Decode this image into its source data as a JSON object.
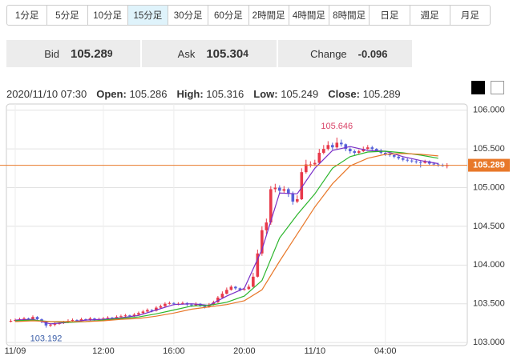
{
  "tabs": [
    "1分足",
    "5分足",
    "10分足",
    "15分足",
    "30分足",
    "60分足",
    "2時間足",
    "4時間足",
    "8時間足",
    "日足",
    "週足",
    "月足"
  ],
  "active_tab": 3,
  "quote": {
    "bid_label": "Bid",
    "bid_main": "105.28",
    "bid_pip": "9",
    "ask_label": "Ask",
    "ask_main": "105.30",
    "ask_pip": "4",
    "change_label": "Change",
    "change": "-0.096"
  },
  "info": {
    "time": "2020/11/10 07:30",
    "items": [
      {
        "label": "Open:",
        "value": "105.286"
      },
      {
        "label": "High:",
        "value": "105.316"
      },
      {
        "label": "Low:",
        "value": "105.249"
      },
      {
        "label": "Close:",
        "value": "105.289"
      }
    ]
  },
  "chart_data": {
    "type": "candlestick",
    "up_color": "#e8394a",
    "down_color": "#5560d8",
    "x": [
      6.75,
      7,
      7.25,
      7.5,
      7.75,
      8,
      8.25,
      8.5,
      8.75,
      9,
      9.25,
      9.5,
      9.75,
      10,
      10.25,
      10.5,
      10.75,
      11,
      11.25,
      11.5,
      11.75,
      12,
      12.25,
      12.5,
      12.75,
      13,
      13.25,
      13.5,
      13.75,
      14,
      14.25,
      14.5,
      14.75,
      15,
      15.25,
      15.5,
      15.75,
      16,
      16.25,
      16.5,
      16.75,
      17,
      17.25,
      17.5,
      17.75,
      18,
      18.25,
      18.5,
      18.75,
      19,
      19.25,
      19.5,
      19.75,
      20,
      20.25,
      20.5,
      20.75,
      21,
      21.25,
      21.5,
      21.75,
      22,
      22.25,
      22.5,
      22.75,
      23,
      23.25,
      23.5,
      23.75,
      24,
      24.25,
      24.5,
      24.75,
      25,
      25.25,
      25.5,
      25.75,
      26,
      26.25,
      26.5,
      26.75,
      27,
      27.25,
      27.5,
      27.75,
      28,
      28.25,
      28.5,
      28.75,
      29,
      29.25,
      29.5,
      29.75,
      30,
      30.25,
      30.5,
      30.75,
      31,
      31.25,
      31.5
    ],
    "candles": [
      [
        103.27,
        103.3,
        103.26,
        103.28
      ],
      [
        103.28,
        103.31,
        103.27,
        103.29
      ],
      [
        103.29,
        103.32,
        103.28,
        103.3
      ],
      [
        103.3,
        103.33,
        103.29,
        103.31
      ],
      [
        103.31,
        103.32,
        103.28,
        103.3
      ],
      [
        103.3,
        103.35,
        103.29,
        103.33
      ],
      [
        103.33,
        103.34,
        103.29,
        103.3
      ],
      [
        103.3,
        103.31,
        103.25,
        103.27
      ],
      [
        103.27,
        103.28,
        103.192,
        103.22
      ],
      [
        103.22,
        103.25,
        103.2,
        103.23
      ],
      [
        103.23,
        103.26,
        103.21,
        103.24
      ],
      [
        103.24,
        103.27,
        103.23,
        103.25
      ],
      [
        103.25,
        103.28,
        103.24,
        103.26
      ],
      [
        103.26,
        103.3,
        103.25,
        103.28
      ],
      [
        103.28,
        103.31,
        103.27,
        103.29
      ],
      [
        103.29,
        103.3,
        103.26,
        103.28
      ],
      [
        103.28,
        103.32,
        103.27,
        103.3
      ],
      [
        103.3,
        103.31,
        103.28,
        103.29
      ],
      [
        103.29,
        103.33,
        103.28,
        103.31
      ],
      [
        103.31,
        103.32,
        103.28,
        103.3
      ],
      [
        103.3,
        103.32,
        103.29,
        103.3
      ],
      [
        103.3,
        103.33,
        103.29,
        103.31
      ],
      [
        103.31,
        103.34,
        103.3,
        103.32
      ],
      [
        103.32,
        103.33,
        103.3,
        103.31
      ],
      [
        103.31,
        103.35,
        103.3,
        103.33
      ],
      [
        103.33,
        103.36,
        103.32,
        103.34
      ],
      [
        103.34,
        103.37,
        103.33,
        103.35
      ],
      [
        103.35,
        103.36,
        103.33,
        103.34
      ],
      [
        103.34,
        103.38,
        103.33,
        103.36
      ],
      [
        103.36,
        103.4,
        103.35,
        103.38
      ],
      [
        103.38,
        103.42,
        103.37,
        103.4
      ],
      [
        103.4,
        103.44,
        103.39,
        103.42
      ],
      [
        103.42,
        103.43,
        103.39,
        103.41
      ],
      [
        103.41,
        103.47,
        103.4,
        103.45
      ],
      [
        103.45,
        103.49,
        103.44,
        103.47
      ],
      [
        103.47,
        103.52,
        103.46,
        103.5
      ],
      [
        103.5,
        103.53,
        103.49,
        103.51
      ],
      [
        103.51,
        103.52,
        103.48,
        103.5
      ],
      [
        103.5,
        103.52,
        103.48,
        103.5
      ],
      [
        103.5,
        103.53,
        103.49,
        103.51
      ],
      [
        103.51,
        103.52,
        103.47,
        103.49
      ],
      [
        103.49,
        103.5,
        103.46,
        103.48
      ],
      [
        103.48,
        103.52,
        103.47,
        103.5
      ],
      [
        103.5,
        103.51,
        103.46,
        103.48
      ],
      [
        103.48,
        103.49,
        103.44,
        103.46
      ],
      [
        103.46,
        103.51,
        103.45,
        103.49
      ],
      [
        103.49,
        103.54,
        103.48,
        103.52
      ],
      [
        103.52,
        103.6,
        103.51,
        103.58
      ],
      [
        103.58,
        103.66,
        103.57,
        103.63
      ],
      [
        103.63,
        103.71,
        103.62,
        103.68
      ],
      [
        103.68,
        103.74,
        103.67,
        103.72
      ],
      [
        103.72,
        103.73,
        103.68,
        103.7
      ],
      [
        103.7,
        103.71,
        103.66,
        103.68
      ],
      [
        103.68,
        103.71,
        103.67,
        103.69
      ],
      [
        103.69,
        103.75,
        103.68,
        103.72
      ],
      [
        103.72,
        103.9,
        103.71,
        103.85
      ],
      [
        103.85,
        104.2,
        103.84,
        104.15
      ],
      [
        104.15,
        104.5,
        104.12,
        104.45
      ],
      [
        104.45,
        104.6,
        104.4,
        104.55
      ],
      [
        104.55,
        105.02,
        104.52,
        104.98
      ],
      [
        104.98,
        105.05,
        104.94,
        105
      ],
      [
        105,
        105.03,
        104.92,
        104.96
      ],
      [
        104.96,
        105.02,
        104.93,
        104.98
      ],
      [
        104.98,
        105,
        104.88,
        104.92
      ],
      [
        104.92,
        104.95,
        104.78,
        104.82
      ],
      [
        104.82,
        104.9,
        104.8,
        104.85
      ],
      [
        104.85,
        105.25,
        104.84,
        105.2
      ],
      [
        105.2,
        105.36,
        105.18,
        105.3
      ],
      [
        105.3,
        105.34,
        105.26,
        105.3
      ],
      [
        105.3,
        105.36,
        105.28,
        105.32
      ],
      [
        105.32,
        105.5,
        105.31,
        105.45
      ],
      [
        105.45,
        105.55,
        105.43,
        105.5
      ],
      [
        105.5,
        105.6,
        105.48,
        105.55
      ],
      [
        105.55,
        105.58,
        105.49,
        105.52
      ],
      [
        105.52,
        105.646,
        105.5,
        105.58
      ],
      [
        105.58,
        105.62,
        105.53,
        105.56
      ],
      [
        105.56,
        105.57,
        105.47,
        105.5
      ],
      [
        105.5,
        105.52,
        105.44,
        105.47
      ],
      [
        105.47,
        105.49,
        105.42,
        105.45
      ],
      [
        105.45,
        105.49,
        105.43,
        105.47
      ],
      [
        105.47,
        105.53,
        105.46,
        105.5
      ],
      [
        105.5,
        105.55,
        105.49,
        105.52
      ],
      [
        105.52,
        105.54,
        105.48,
        105.5
      ],
      [
        105.5,
        105.51,
        105.46,
        105.48
      ],
      [
        105.48,
        105.5,
        105.43,
        105.45
      ],
      [
        105.45,
        105.47,
        105.41,
        105.43
      ],
      [
        105.43,
        105.45,
        105.4,
        105.42
      ],
      [
        105.42,
        105.44,
        105.38,
        105.4
      ],
      [
        105.4,
        105.42,
        105.36,
        105.38
      ],
      [
        105.38,
        105.4,
        105.34,
        105.36
      ],
      [
        105.36,
        105.38,
        105.33,
        105.35
      ],
      [
        105.35,
        105.37,
        105.32,
        105.34
      ],
      [
        105.34,
        105.36,
        105.31,
        105.33
      ],
      [
        105.33,
        105.35,
        105.26,
        105.32
      ],
      [
        105.32,
        105.36,
        105.31,
        105.34
      ],
      [
        105.34,
        105.35,
        105.29,
        105.31
      ],
      [
        105.31,
        105.33,
        105.28,
        105.3
      ],
      [
        105.3,
        105.32,
        105.27,
        105.29
      ],
      [
        105.29,
        105.31,
        105.27,
        105.286
      ],
      [
        105.286,
        105.316,
        105.249,
        105.289
      ]
    ],
    "series": [
      {
        "color": "#7a2fc7",
        "x": [
          7,
          8,
          9,
          10,
          11,
          12,
          13,
          14,
          15,
          16,
          17,
          18,
          19,
          20,
          21,
          22,
          23,
          24,
          25,
          26,
          27,
          28,
          29,
          30,
          31
        ],
        "values": [
          103.29,
          103.3,
          103.24,
          103.26,
          103.29,
          103.3,
          103.32,
          103.35,
          103.42,
          103.49,
          103.5,
          103.48,
          103.6,
          103.7,
          104.2,
          104.93,
          104.92,
          105.25,
          105.48,
          105.53,
          105.48,
          105.47,
          105.4,
          105.35,
          105.31
        ]
      },
      {
        "color": "#2bb52b",
        "x": [
          7,
          8,
          9,
          10,
          11,
          12,
          13,
          14,
          15,
          16,
          17,
          18,
          19,
          20,
          21,
          22,
          23,
          24,
          25,
          26,
          27,
          28,
          29,
          30,
          31
        ],
        "values": [
          103.28,
          103.29,
          103.27,
          103.26,
          103.27,
          103.29,
          103.31,
          103.33,
          103.37,
          103.42,
          103.47,
          103.48,
          103.52,
          103.6,
          103.8,
          104.35,
          104.65,
          104.92,
          105.25,
          105.4,
          105.46,
          105.47,
          105.45,
          105.42,
          105.38
        ]
      },
      {
        "color": "#e8782a",
        "x": [
          7,
          8,
          9,
          10,
          11,
          12,
          13,
          14,
          15,
          16,
          17,
          18,
          19,
          20,
          21,
          22,
          23,
          24,
          25,
          26,
          27,
          28,
          29,
          30,
          31
        ],
        "values": [
          103.27,
          103.28,
          103.27,
          103.27,
          103.27,
          103.28,
          103.3,
          103.31,
          103.34,
          103.38,
          103.43,
          103.46,
          103.49,
          103.54,
          103.68,
          104.05,
          104.4,
          104.75,
          105.05,
          105.28,
          105.38,
          105.43,
          105.44,
          105.43,
          105.41
        ]
      }
    ],
    "last": {
      "value": 105.289,
      "label": "105.289",
      "color": "#e8782a"
    },
    "annotations": [
      {
        "x": 25.25,
        "value": 105.646,
        "label": "105.646",
        "color": "#d9466a"
      },
      {
        "x": 8.75,
        "value": 103.192,
        "label": "103.192",
        "color": "#3b5ea8"
      }
    ],
    "xlim": [
      6.5,
      32.65
    ],
    "ylim": [
      102.96,
      106.08
    ],
    "xticks": [
      {
        "value": 7,
        "label": "11/09"
      },
      {
        "value": 12,
        "label": "12:00"
      },
      {
        "value": 16,
        "label": "16:00"
      },
      {
        "value": 20,
        "label": "20:00"
      },
      {
        "value": 24,
        "label": "11/10"
      },
      {
        "value": 28,
        "label": "04:00"
      }
    ],
    "yticks": [
      {
        "value": 103,
        "label": "103.000"
      },
      {
        "value": 103.5,
        "label": "103.500"
      },
      {
        "value": 104,
        "label": "104.000"
      },
      {
        "value": 104.5,
        "label": "104.500"
      },
      {
        "value": 105,
        "label": "105.000"
      },
      {
        "value": 105.5,
        "label": "105.500"
      },
      {
        "value": 106,
        "label": "106.000"
      }
    ],
    "grid": true
  }
}
